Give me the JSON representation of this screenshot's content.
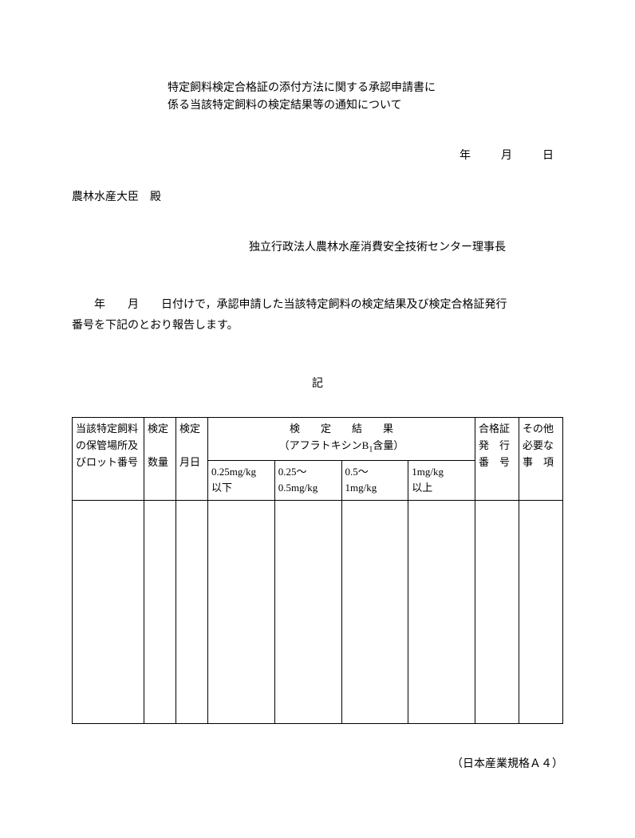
{
  "title_line1": "特定飼料検定合格証の添付方法に関する承認申請書に",
  "title_line2": "係る当該特定飼料の検定結果等の通知について",
  "date_line": "年　月　日",
  "addressee": "農林水産大臣　殿",
  "from": "独立行政法人農林水産消費安全技術センター理事長",
  "body_line1": "年　　月　　日付けで，承認申請した当該特定飼料の検定結果及び検定合格証発行",
  "body_line2": "番号を下記のとおり報告します。",
  "ki": "記",
  "table": {
    "col1_line1": "当該特定飼料",
    "col1_line2": "の保管場所及",
    "col1_line3": "びロット番号",
    "col2_line1": "検定",
    "col2_line2": "数量",
    "col3_line1": "検定",
    "col3_line2": "月日",
    "result_header": "検　　定　　結　　果",
    "result_sub_prefix": "（アフラトキシンB",
    "result_sub_sub": "1",
    "result_sub_suffix": "含量）",
    "col4_line1": "0.25mg/kg",
    "col4_line2": "以下",
    "col5_line1": "0.25～",
    "col5_line2": "0.5mg/kg",
    "col6_line1": "0.5～",
    "col6_line2": "1mg/kg",
    "col7_line1": "1mg/kg",
    "col7_line2": "以上",
    "col8_line1": "合格証",
    "col8_line2": "発　行",
    "col8_line3": "番　号",
    "col9_line1": "その他",
    "col9_line2": "必要な",
    "col9_line3": "事　項"
  },
  "footer": "（日本産業規格Ａ４）"
}
